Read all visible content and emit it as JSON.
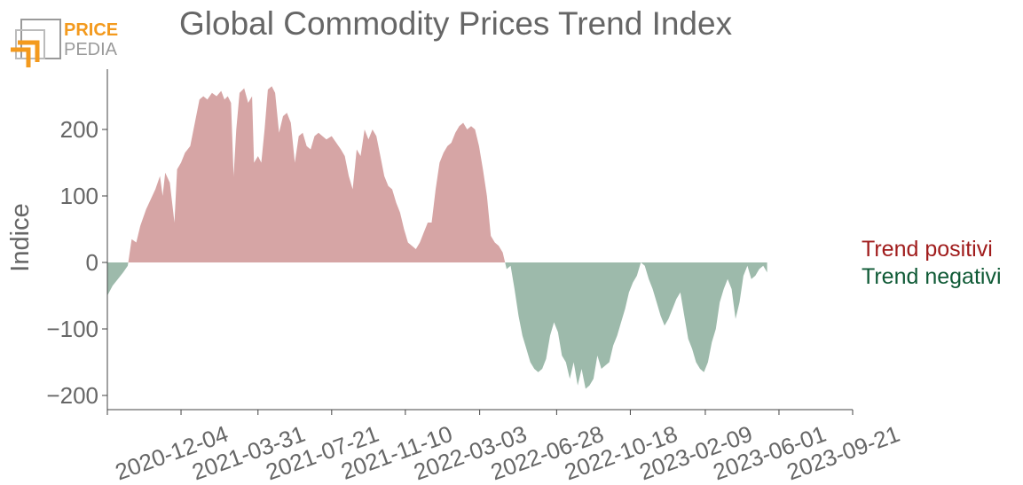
{
  "header": {
    "title": "Global Commodity Prices Trend Index",
    "logo_text_top": "PRICE",
    "logo_text_bottom": "PEDIA"
  },
  "colors": {
    "positive": "#d6a5a5",
    "negative": "#9dbaab",
    "positive_label": "#a01c1c",
    "negative_label": "#0f5a36",
    "axis": "#444444",
    "text": "#666666",
    "logo_orange": "#f39a1e",
    "logo_gray": "#9a9a9a"
  },
  "chart_data": {
    "type": "area",
    "title": "Global Commodity Prices Trend Index",
    "ylabel": "Indice",
    "xlabel": "",
    "ylim": [
      -220,
      290
    ],
    "yticks": [
      -200,
      -100,
      0,
      100,
      200
    ],
    "ytick_labels": [
      "−200",
      "−100",
      "0",
      "100",
      "200"
    ],
    "xlim": [
      "2020-08-14",
      "2023-09-21"
    ],
    "xticks": [
      "2020-12-04",
      "2021-03-31",
      "2021-07-21",
      "2021-11-10",
      "2022-03-03",
      "2022-06-28",
      "2022-10-18",
      "2023-02-09",
      "2023-06-01",
      "2023-09-21"
    ],
    "grid": false,
    "legend": [
      {
        "name": "Trend positivi",
        "placement": "right"
      },
      {
        "name": "Trend negativi",
        "placement": "right"
      }
    ],
    "series": [
      {
        "name": "Indice",
        "points": [
          [
            "2020-08-14",
            -50
          ],
          [
            "2020-08-22",
            -35
          ],
          [
            "2020-08-30",
            -25
          ],
          [
            "2020-09-07",
            -15
          ],
          [
            "2020-09-14",
            -5
          ],
          [
            "2020-09-20",
            35
          ],
          [
            "2020-09-27",
            30
          ],
          [
            "2020-10-03",
            55
          ],
          [
            "2020-10-12",
            80
          ],
          [
            "2020-10-19",
            95
          ],
          [
            "2020-10-26",
            110
          ],
          [
            "2020-11-02",
            130
          ],
          [
            "2020-11-06",
            100
          ],
          [
            "2020-11-10",
            135
          ],
          [
            "2020-11-17",
            120
          ],
          [
            "2020-11-24",
            60
          ],
          [
            "2020-11-28",
            140
          ],
          [
            "2020-12-04",
            150
          ],
          [
            "2020-12-10",
            165
          ],
          [
            "2020-12-18",
            175
          ],
          [
            "2020-12-25",
            210
          ],
          [
            "2021-01-01",
            245
          ],
          [
            "2021-01-07",
            250
          ],
          [
            "2021-01-13",
            245
          ],
          [
            "2021-01-20",
            255
          ],
          [
            "2021-01-27",
            250
          ],
          [
            "2021-02-03",
            258
          ],
          [
            "2021-02-08",
            245
          ],
          [
            "2021-02-13",
            250
          ],
          [
            "2021-02-18",
            240
          ],
          [
            "2021-02-22",
            130
          ],
          [
            "2021-02-26",
            200
          ],
          [
            "2021-03-03",
            255
          ],
          [
            "2021-03-10",
            262
          ],
          [
            "2021-03-16",
            240
          ],
          [
            "2021-03-22",
            250
          ],
          [
            "2021-03-25",
            150
          ],
          [
            "2021-03-31",
            160
          ],
          [
            "2021-04-05",
            150
          ],
          [
            "2021-04-10",
            200
          ],
          [
            "2021-04-15",
            260
          ],
          [
            "2021-04-21",
            265
          ],
          [
            "2021-04-26",
            255
          ],
          [
            "2021-05-02",
            195
          ],
          [
            "2021-05-08",
            220
          ],
          [
            "2021-05-14",
            225
          ],
          [
            "2021-05-20",
            210
          ],
          [
            "2021-05-26",
            150
          ],
          [
            "2021-06-01",
            190
          ],
          [
            "2021-06-07",
            195
          ],
          [
            "2021-06-13",
            175
          ],
          [
            "2021-06-19",
            170
          ],
          [
            "2021-06-25",
            190
          ],
          [
            "2021-07-01",
            195
          ],
          [
            "2021-07-07",
            190
          ],
          [
            "2021-07-13",
            185
          ],
          [
            "2021-07-21",
            190
          ],
          [
            "2021-07-28",
            180
          ],
          [
            "2021-08-04",
            170
          ],
          [
            "2021-08-10",
            160
          ],
          [
            "2021-08-16",
            130
          ],
          [
            "2021-08-22",
            110
          ],
          [
            "2021-08-28",
            170
          ],
          [
            "2021-09-03",
            160
          ],
          [
            "2021-09-09",
            200
          ],
          [
            "2021-09-15",
            185
          ],
          [
            "2021-09-21",
            200
          ],
          [
            "2021-09-27",
            190
          ],
          [
            "2021-10-03",
            160
          ],
          [
            "2021-10-09",
            130
          ],
          [
            "2021-10-15",
            115
          ],
          [
            "2021-10-21",
            110
          ],
          [
            "2021-10-27",
            90
          ],
          [
            "2021-11-02",
            75
          ],
          [
            "2021-11-08",
            50
          ],
          [
            "2021-11-14",
            30
          ],
          [
            "2021-11-20",
            25
          ],
          [
            "2021-11-26",
            20
          ],
          [
            "2021-12-02",
            30
          ],
          [
            "2021-12-08",
            45
          ],
          [
            "2021-12-14",
            60
          ],
          [
            "2021-12-20",
            60
          ],
          [
            "2021-12-26",
            110
          ],
          [
            "2022-01-01",
            150
          ],
          [
            "2022-01-07",
            165
          ],
          [
            "2022-01-13",
            175
          ],
          [
            "2022-01-19",
            180
          ],
          [
            "2022-01-25",
            195
          ],
          [
            "2022-01-31",
            205
          ],
          [
            "2022-02-06",
            210
          ],
          [
            "2022-02-12",
            200
          ],
          [
            "2022-02-18",
            205
          ],
          [
            "2022-02-24",
            200
          ],
          [
            "2022-03-02",
            175
          ],
          [
            "2022-03-08",
            140
          ],
          [
            "2022-03-14",
            100
          ],
          [
            "2022-03-20",
            40
          ],
          [
            "2022-03-26",
            30
          ],
          [
            "2022-04-01",
            25
          ],
          [
            "2022-04-07",
            15
          ],
          [
            "2022-04-13",
            -10
          ],
          [
            "2022-04-19",
            -5
          ],
          [
            "2022-04-25",
            -40
          ],
          [
            "2022-05-01",
            -80
          ],
          [
            "2022-05-07",
            -110
          ],
          [
            "2022-05-13",
            -130
          ],
          [
            "2022-05-19",
            -150
          ],
          [
            "2022-05-25",
            -160
          ],
          [
            "2022-05-31",
            -165
          ],
          [
            "2022-06-06",
            -160
          ],
          [
            "2022-06-12",
            -145
          ],
          [
            "2022-06-18",
            -110
          ],
          [
            "2022-06-24",
            -90
          ],
          [
            "2022-06-30",
            -105
          ],
          [
            "2022-07-06",
            -140
          ],
          [
            "2022-07-12",
            -150
          ],
          [
            "2022-07-18",
            -175
          ],
          [
            "2022-07-24",
            -150
          ],
          [
            "2022-07-30",
            -185
          ],
          [
            "2022-08-05",
            -160
          ],
          [
            "2022-08-11",
            -190
          ],
          [
            "2022-08-17",
            -185
          ],
          [
            "2022-08-23",
            -175
          ],
          [
            "2022-08-29",
            -140
          ],
          [
            "2022-09-04",
            -160
          ],
          [
            "2022-09-10",
            -155
          ],
          [
            "2022-09-16",
            -150
          ],
          [
            "2022-09-22",
            -125
          ],
          [
            "2022-09-28",
            -110
          ],
          [
            "2022-10-04",
            -90
          ],
          [
            "2022-10-10",
            -70
          ],
          [
            "2022-10-16",
            -45
          ],
          [
            "2022-10-22",
            -30
          ],
          [
            "2022-10-28",
            -20
          ],
          [
            "2022-11-03",
            0
          ],
          [
            "2022-11-09",
            -5
          ],
          [
            "2022-11-15",
            -25
          ],
          [
            "2022-11-21",
            -40
          ],
          [
            "2022-11-27",
            -60
          ],
          [
            "2022-12-03",
            -80
          ],
          [
            "2022-12-09",
            -95
          ],
          [
            "2022-12-15",
            -85
          ],
          [
            "2022-12-21",
            -70
          ],
          [
            "2022-12-27",
            -55
          ],
          [
            "2023-01-02",
            -45
          ],
          [
            "2023-01-08",
            -80
          ],
          [
            "2023-01-14",
            -115
          ],
          [
            "2023-01-20",
            -130
          ],
          [
            "2023-01-26",
            -150
          ],
          [
            "2023-02-01",
            -160
          ],
          [
            "2023-02-07",
            -165
          ],
          [
            "2023-02-13",
            -150
          ],
          [
            "2023-02-19",
            -120
          ],
          [
            "2023-02-25",
            -100
          ],
          [
            "2023-03-03",
            -60
          ],
          [
            "2023-03-09",
            -40
          ],
          [
            "2023-03-15",
            -25
          ],
          [
            "2023-03-21",
            -40
          ],
          [
            "2023-03-27",
            -85
          ],
          [
            "2023-04-02",
            -60
          ],
          [
            "2023-04-08",
            -20
          ],
          [
            "2023-04-14",
            -5
          ],
          [
            "2023-04-20",
            -25
          ],
          [
            "2023-04-26",
            -20
          ],
          [
            "2023-05-02",
            -10
          ],
          [
            "2023-05-08",
            -5
          ],
          [
            "2023-05-14",
            -15
          ]
        ]
      }
    ]
  }
}
